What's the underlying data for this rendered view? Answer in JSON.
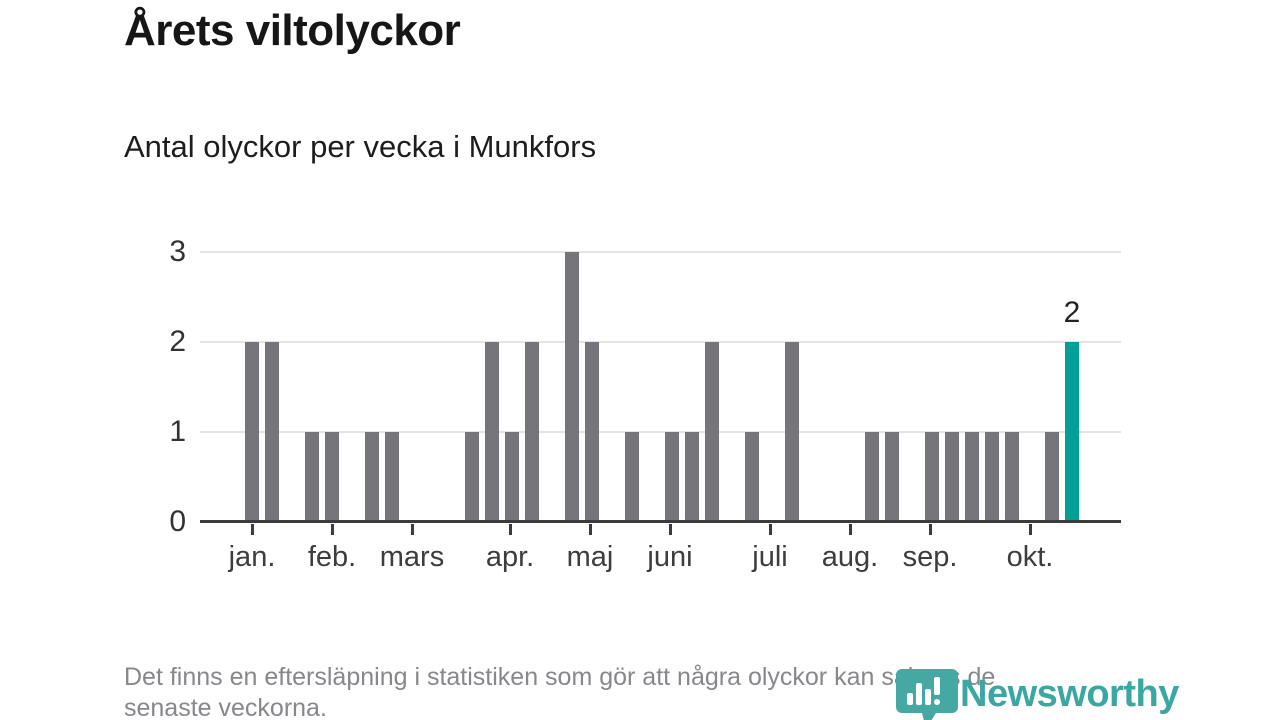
{
  "header": {
    "title": "Årets viltolyckor",
    "subtitle": "Antal olyckor per vecka i Munkfors"
  },
  "chart_data": {
    "type": "bar",
    "title": "Årets viltolyckor",
    "subtitle": "Antal olyckor per vecka i Munkfors",
    "x_unit": "vecka",
    "num_week_slots": 46,
    "values": [
      0,
      0,
      2,
      2,
      0,
      1,
      1,
      0,
      1,
      1,
      0,
      0,
      0,
      1,
      2,
      1,
      2,
      0,
      3,
      2,
      0,
      1,
      0,
      1,
      1,
      2,
      0,
      1,
      0,
      2,
      0,
      0,
      0,
      1,
      1,
      0,
      1,
      1,
      1,
      1,
      1,
      0,
      1,
      2,
      0,
      0
    ],
    "highlight": {
      "week": 44,
      "value": 2,
      "label": "2"
    },
    "ylim": [
      0,
      3
    ],
    "yticks": [
      "0",
      "1",
      "2",
      "3"
    ],
    "grid": "horizontal",
    "legend": "none",
    "month_ticks": [
      {
        "label": "jan.",
        "px": 52
      },
      {
        "label": "feb.",
        "px": 132
      },
      {
        "label": "mars",
        "px": 212
      },
      {
        "label": "apr.",
        "px": 310
      },
      {
        "label": "maj",
        "px": 390
      },
      {
        "label": "juni",
        "px": 470
      },
      {
        "label": "juli",
        "px": 570
      },
      {
        "label": "aug.",
        "px": 650
      },
      {
        "label": "sep.",
        "px": 730
      },
      {
        "label": "okt.",
        "px": 830
      }
    ],
    "bar_color": "#75757b",
    "highlight_color": "#00a099",
    "axis_color": "#3b3b3b",
    "gridline_color": "#e4e4e4"
  },
  "footer": {
    "line1": "Det finns en eftersläpning i statistiken som gör att några olyckor kan saknas de",
    "line2": "senaste veckorna."
  },
  "logo": {
    "text": "Newsworthy",
    "color": "#3aa7a2"
  }
}
